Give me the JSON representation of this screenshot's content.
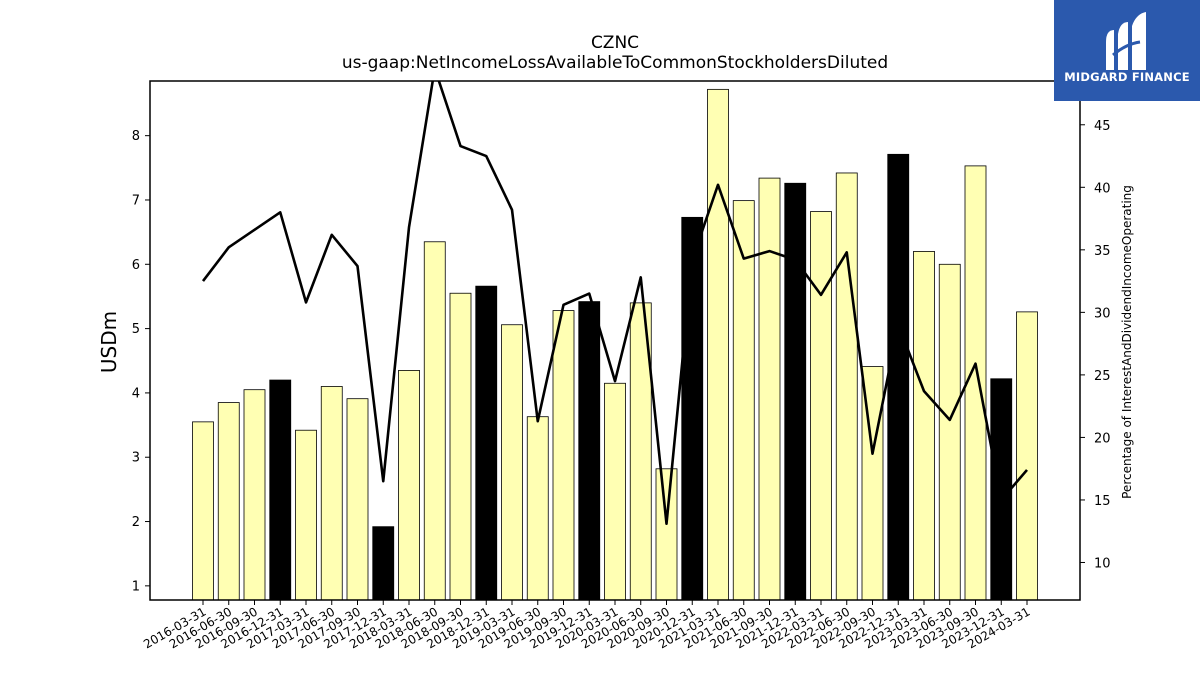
{
  "brand": {
    "name": "MIDGARD FINANCE",
    "logo_icon": "midgard-m-icon",
    "bg_color": "#2b59ad"
  },
  "chart_data": {
    "type": "bar",
    "title": "CZNC",
    "subtitle": "us-gaap:NetIncomeLossAvailableToCommonStockholdersDiluted",
    "ylabel": "USDm",
    "y2label": "Percentage of InterestAndDividendIncomeOperating",
    "ylim": [
      0.78,
      8.85
    ],
    "y2lim": [
      7.0,
      48.5
    ],
    "yticks": [
      1,
      2,
      3,
      4,
      5,
      6,
      7,
      8
    ],
    "y2ticks": [
      10,
      15,
      20,
      25,
      30,
      35,
      40,
      45
    ],
    "grid": false,
    "categories": [
      "2016-03-31",
      "2016-06-30",
      "2016-09-30",
      "2016-12-31",
      "2017-03-31",
      "2017-06-30",
      "2017-09-30",
      "2017-12-31",
      "2018-03-31",
      "2018-06-30",
      "2018-09-30",
      "2018-12-31",
      "2019-03-31",
      "2019-06-30",
      "2019-09-30",
      "2019-12-31",
      "2020-03-31",
      "2020-06-30",
      "2020-09-30",
      "2020-12-31",
      "2021-03-31",
      "2021-06-30",
      "2021-09-30",
      "2021-12-31",
      "2022-03-31",
      "2022-06-30",
      "2022-09-30",
      "2022-12-31",
      "2023-03-31",
      "2023-06-30",
      "2023-09-30",
      "2023-12-31",
      "2024-03-31"
    ],
    "series": [
      {
        "kind": "bar",
        "axis": "left",
        "values": [
          3.55,
          3.85,
          4.05,
          4.2,
          3.42,
          4.1,
          3.91,
          1.92,
          4.35,
          6.35,
          5.55,
          5.66,
          5.06,
          3.63,
          5.28,
          5.42,
          4.15,
          5.4,
          2.82,
          6.73,
          8.72,
          6.99,
          7.34,
          7.26,
          6.82,
          7.42,
          4.41,
          7.71,
          6.2,
          6.0,
          7.53,
          4.22,
          5.26
        ],
        "highlight": [
          false,
          false,
          false,
          true,
          false,
          false,
          false,
          true,
          false,
          false,
          false,
          true,
          false,
          false,
          false,
          true,
          false,
          false,
          false,
          true,
          false,
          false,
          false,
          true,
          false,
          false,
          false,
          true,
          false,
          false,
          false,
          true,
          false
        ],
        "fill_color": "#ffffb3",
        "highlight_color": "#000000"
      },
      {
        "kind": "line",
        "axis": "right",
        "color": "#000000",
        "values": [
          32.5,
          35.2,
          36.6,
          38.0,
          30.8,
          36.2,
          33.7,
          16.5,
          36.8,
          49.5,
          43.3,
          42.5,
          38.2,
          21.3,
          30.6,
          31.5,
          24.5,
          32.8,
          13.1,
          34.2,
          40.2,
          34.3,
          34.9,
          34.2,
          31.4,
          34.8,
          18.7,
          29.0,
          23.7,
          21.4,
          25.9,
          15.0,
          17.4
        ]
      }
    ]
  }
}
